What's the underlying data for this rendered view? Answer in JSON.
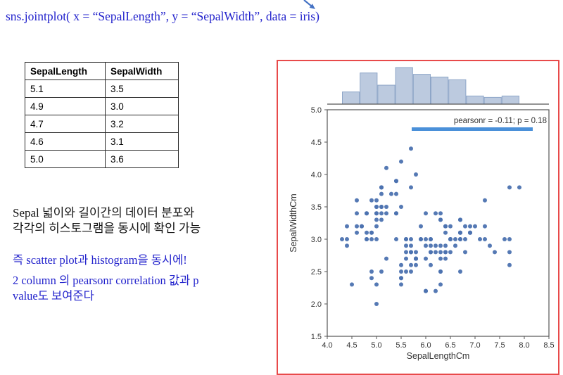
{
  "code_line": "sns.jointplot( x = “SepalLength”, y = “SepalWidth”, data = iris)",
  "table": {
    "headers": [
      "SepalLength",
      "SepalWidth"
    ],
    "rows": [
      [
        "5.1",
        "3.5"
      ],
      [
        "4.9",
        "3.0"
      ],
      [
        "4.7",
        "3.2"
      ],
      [
        "4.6",
        "3.1"
      ],
      [
        "5.0",
        "3.6"
      ]
    ]
  },
  "notes": {
    "korean_black": "Sepal 넓이와 길이간의 데이터 분포와\n각각의 히스토그램을 동시에 확인 가능",
    "korean_blue_1": "즉 scatter plot과 histogram을 동시에!",
    "korean_blue_2": "2 column 의 pearsonr correlation 값과 p\nvalue도 보여준다"
  },
  "chart_data": {
    "type": "scatter",
    "title": "",
    "xlabel": "SepalLengthCm",
    "ylabel": "SepalWidthCm",
    "xlim": [
      4.0,
      8.5
    ],
    "ylim": [
      1.5,
      5.0
    ],
    "x_ticks": [
      "4.0",
      "4.5",
      "5.0",
      "5.5",
      "6.0",
      "6.5",
      "7.0",
      "7.5",
      "8.0",
      "8.5"
    ],
    "y_ticks": [
      "1.5",
      "2.0",
      "2.5",
      "3.0",
      "3.5",
      "4.0",
      "4.5",
      "5.0"
    ],
    "annotation": "pearsonr = -0.11; p = 0.18",
    "marginal": "histogram-of-x-on-top",
    "hist_bins": 10,
    "grid": false,
    "colors": {
      "dot": "#4c72b0",
      "hist_fill": "#bccadf",
      "hist_edge": "#8ea6c8",
      "spine": "#555555",
      "underline": "#4a90d9",
      "text": "#333333"
    },
    "x": [
      5.1,
      4.9,
      4.7,
      4.6,
      5.0,
      5.4,
      4.6,
      5.0,
      4.4,
      4.9,
      5.4,
      4.8,
      4.8,
      4.3,
      5.8,
      5.7,
      5.4,
      5.1,
      5.7,
      5.1,
      5.4,
      5.1,
      4.6,
      5.1,
      4.8,
      5.0,
      5.0,
      5.2,
      5.2,
      4.7,
      4.8,
      5.4,
      5.2,
      5.5,
      4.9,
      5.0,
      5.5,
      4.9,
      4.4,
      5.1,
      5.0,
      4.5,
      4.4,
      5.0,
      5.1,
      4.8,
      5.1,
      4.6,
      5.3,
      5.0,
      7.0,
      6.4,
      6.9,
      5.5,
      6.5,
      5.7,
      6.3,
      4.9,
      6.6,
      5.2,
      5.0,
      5.9,
      6.0,
      6.1,
      5.6,
      6.7,
      5.6,
      5.8,
      6.2,
      5.6,
      5.9,
      6.1,
      6.3,
      6.1,
      6.4,
      6.6,
      6.8,
      6.7,
      6.0,
      5.7,
      5.5,
      5.5,
      5.8,
      6.0,
      5.4,
      6.0,
      6.7,
      6.3,
      5.6,
      5.5,
      5.5,
      6.1,
      5.8,
      5.0,
      5.6,
      5.7,
      5.7,
      6.2,
      5.1,
      5.7,
      6.3,
      5.8,
      7.1,
      6.3,
      6.5,
      7.6,
      4.9,
      7.3,
      6.7,
      7.2,
      6.5,
      6.4,
      6.8,
      5.7,
      5.8,
      6.4,
      6.5,
      7.7,
      7.7,
      6.0,
      6.9,
      5.6,
      7.7,
      6.3,
      6.7,
      7.2,
      6.2,
      6.1,
      6.4,
      7.2,
      7.4,
      7.9,
      6.4,
      6.3,
      6.1,
      7.7,
      6.3,
      6.4,
      6.0,
      6.9,
      6.7,
      6.9,
      5.8,
      6.8,
      6.7,
      6.7,
      6.3,
      6.5,
      6.2,
      5.9
    ],
    "y": [
      3.5,
      3.0,
      3.2,
      3.1,
      3.6,
      3.9,
      3.4,
      3.4,
      2.9,
      3.1,
      3.7,
      3.4,
      3.0,
      3.0,
      4.0,
      4.4,
      3.9,
      3.5,
      3.8,
      3.8,
      3.4,
      3.7,
      3.6,
      3.3,
      3.4,
      3.0,
      3.4,
      3.5,
      3.4,
      3.2,
      3.1,
      3.4,
      4.1,
      4.2,
      3.1,
      3.2,
      3.5,
      3.6,
      3.0,
      3.4,
      3.5,
      2.3,
      3.2,
      3.5,
      3.8,
      3.0,
      3.8,
      3.2,
      3.7,
      3.3,
      3.2,
      3.2,
      3.1,
      2.3,
      2.8,
      2.8,
      3.3,
      2.4,
      2.9,
      2.7,
      2.0,
      3.0,
      2.2,
      2.9,
      2.9,
      3.1,
      3.0,
      2.7,
      2.2,
      2.5,
      3.2,
      2.8,
      2.5,
      2.8,
      2.9,
      3.0,
      2.8,
      3.0,
      2.9,
      2.6,
      2.4,
      2.4,
      2.7,
      2.7,
      3.0,
      3.4,
      3.1,
      2.3,
      3.0,
      2.5,
      2.6,
      3.0,
      2.6,
      2.3,
      2.7,
      3.0,
      2.9,
      2.9,
      2.5,
      2.8,
      3.3,
      2.7,
      3.0,
      2.9,
      3.0,
      3.0,
      2.5,
      2.9,
      2.5,
      3.6,
      3.2,
      2.7,
      3.0,
      2.5,
      2.8,
      3.2,
      3.0,
      3.8,
      2.6,
      2.2,
      3.2,
      2.8,
      2.8,
      2.7,
      3.3,
      3.2,
      2.8,
      3.0,
      2.8,
      3.0,
      2.8,
      3.8,
      2.8,
      2.8,
      2.6,
      3.0,
      3.4,
      3.1,
      3.0,
      3.1,
      3.1,
      3.1,
      2.7,
      3.2,
      3.3,
      3.0,
      2.5,
      3.0,
      3.4,
      3.0
    ]
  },
  "panel": {
    "border_color": "#e84a4a"
  },
  "arrow_color": "#4472c4"
}
